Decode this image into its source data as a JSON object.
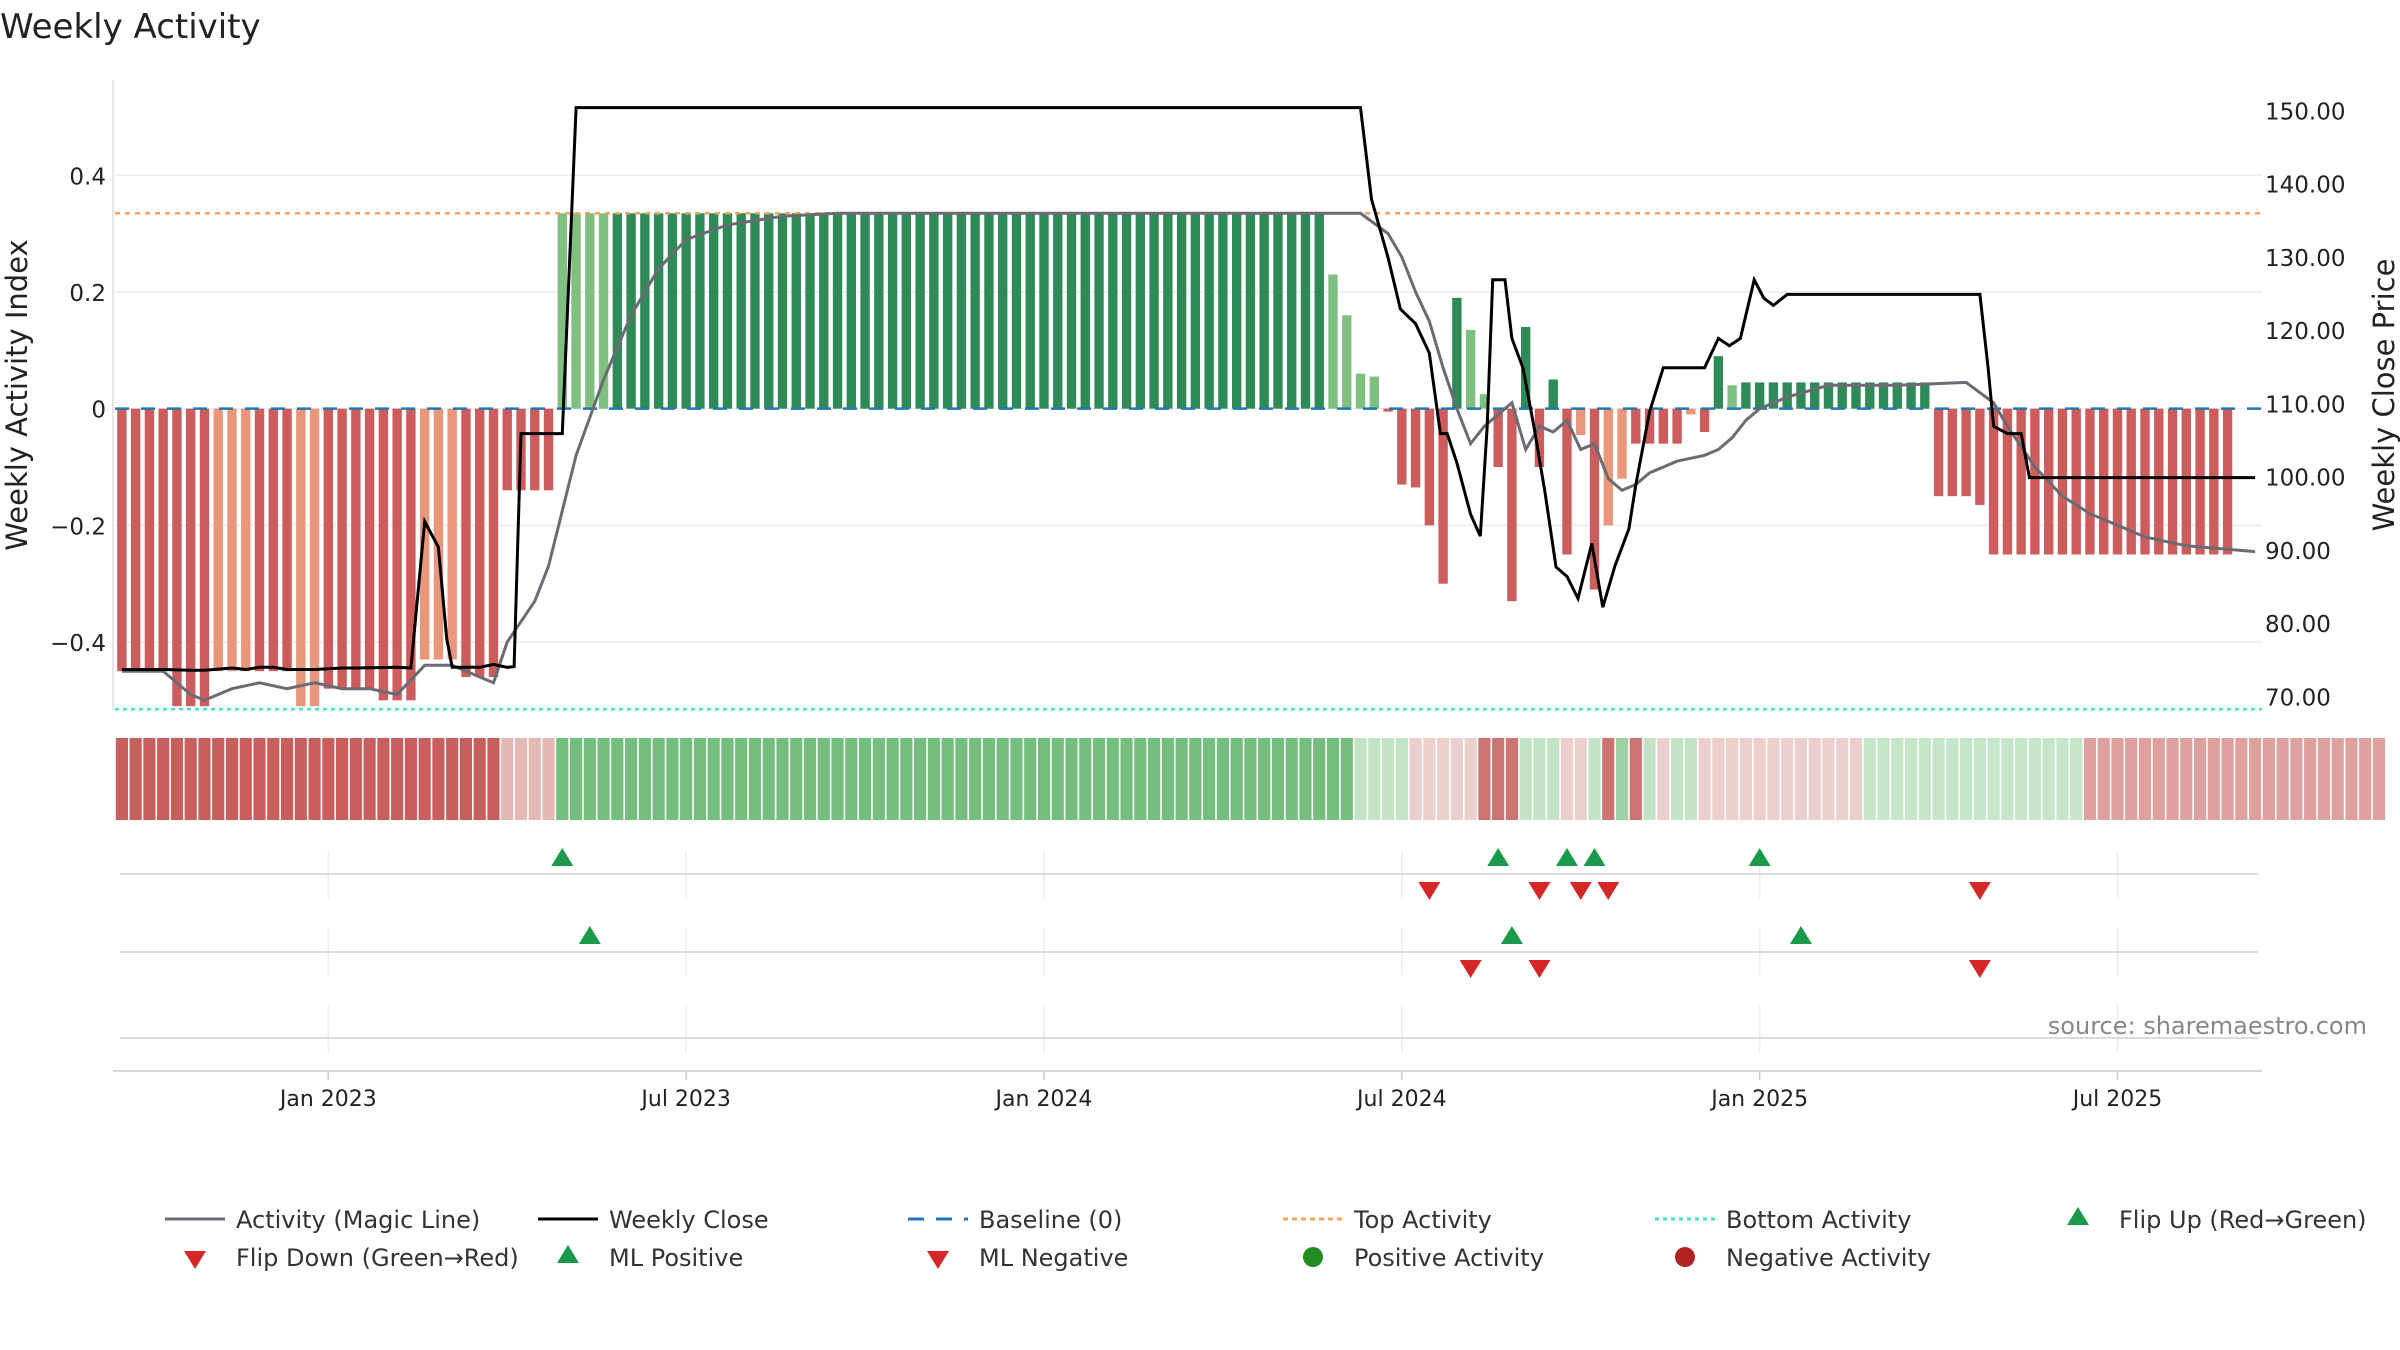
{
  "title": "Weekly Activity",
  "source": "source: sharemaestro.com",
  "chart_data": {
    "type": "bar",
    "title": "Weekly Activity",
    "ylabel": "Weekly Activity Index",
    "y2label": "Weekly Close Price",
    "ylim": [
      -0.52,
      0.56
    ],
    "y2lim": [
      68,
      154
    ],
    "yticks": [
      {
        "v": 0.4,
        "label": "0.4"
      },
      {
        "v": 0.2,
        "label": "0.2"
      },
      {
        "v": 0,
        "label": "0"
      },
      {
        "v": -0.2,
        "label": "−0.2"
      },
      {
        "v": -0.4,
        "label": "−0.4"
      }
    ],
    "y2ticks": [
      {
        "v": 150,
        "label": "150.00"
      },
      {
        "v": 140,
        "label": "140.00"
      },
      {
        "v": 130,
        "label": "130.00"
      },
      {
        "v": 120,
        "label": "120.00"
      },
      {
        "v": 110,
        "label": "110.00"
      },
      {
        "v": 100,
        "label": "100.00"
      },
      {
        "v": 90,
        "label": "90.00"
      },
      {
        "v": 80,
        "label": "80.00"
      },
      {
        "v": 70,
        "label": "70.00"
      }
    ],
    "xticks": [
      {
        "index": 15,
        "label": "Jan 2023"
      },
      {
        "index": 41,
        "label": "Jul 2023"
      },
      {
        "index": 67,
        "label": "Jan 2024"
      },
      {
        "index": 93,
        "label": "Jul 2024"
      },
      {
        "index": 119,
        "label": "Jan 2025"
      },
      {
        "index": 145,
        "label": "Jul 2025"
      }
    ],
    "top_activity": 0.335,
    "bottom_activity": -0.515,
    "baseline": 0,
    "colors": {
      "strong_green": "#2e8b57",
      "light_green": "#7fbf7f",
      "strong_red": "#cd5c5c",
      "light_red": "#e9967a",
      "magic_line": "#6b6b73",
      "close_line": "#000000",
      "baseline": "#1f77b4",
      "top_line": "#f4a460",
      "bottom_line": "#40e0d0",
      "marker_up": "#1a9a4a",
      "marker_down": "#d62728",
      "positive_dot": "#228b22",
      "negative_dot": "#b22222"
    },
    "bar_segments": [
      {
        "n": 4,
        "v": -0.45,
        "c": "sr"
      },
      {
        "n": 3,
        "v": -0.51,
        "c": "sr"
      },
      {
        "n": 3,
        "v": -0.45,
        "c": "lr"
      },
      {
        "n": 3,
        "v": -0.45,
        "c": "sr"
      },
      {
        "n": 2,
        "v": -0.51,
        "c": "lr"
      },
      {
        "n": 4,
        "v": -0.48,
        "c": "sr"
      },
      {
        "n": 3,
        "v": -0.5,
        "c": "sr"
      },
      {
        "n": 3,
        "v": -0.43,
        "c": "lr"
      },
      {
        "n": 3,
        "v": -0.46,
        "c": "sr"
      },
      {
        "n": 4,
        "v": -0.14,
        "c": "sr"
      },
      {
        "n": 4,
        "v": 0.335,
        "c": "lg"
      },
      {
        "n": 45,
        "v": 0.335,
        "c": "sg"
      },
      {
        "n": 7,
        "v": 0.335,
        "c": "sg"
      },
      {
        "v": 0.23,
        "c": "lg"
      },
      {
        "v": 0.16,
        "c": "lg"
      },
      {
        "v": 0.06,
        "c": "lg"
      },
      {
        "v": 0.055,
        "c": "lg"
      },
      {
        "v": -0.005,
        "c": "sr"
      },
      {
        "v": -0.13,
        "c": "sr"
      },
      {
        "v": -0.135,
        "c": "sr"
      },
      {
        "v": -0.2,
        "c": "sr"
      },
      {
        "v": -0.3,
        "c": "sr"
      },
      {
        "v": 0.19,
        "c": "sg"
      },
      {
        "v": 0.135,
        "c": "lg"
      },
      {
        "v": 0.025,
        "c": "lg"
      },
      {
        "v": -0.1,
        "c": "sr"
      },
      {
        "v": -0.33,
        "c": "sr"
      },
      {
        "v": 0.14,
        "c": "sg"
      },
      {
        "v": -0.1,
        "c": "sr"
      },
      {
        "v": 0.05,
        "c": "sg"
      },
      {
        "v": -0.25,
        "c": "sr"
      },
      {
        "v": -0.045,
        "c": "lr"
      },
      {
        "v": -0.31,
        "c": "sr"
      },
      {
        "v": -0.2,
        "c": "lr"
      },
      {
        "v": -0.12,
        "c": "lr"
      },
      {
        "v": -0.06,
        "c": "sr"
      },
      {
        "v": -0.06,
        "c": "sr"
      },
      {
        "v": -0.06,
        "c": "sr"
      },
      {
        "v": -0.06,
        "c": "sr"
      },
      {
        "v": -0.01,
        "c": "lr"
      },
      {
        "v": -0.04,
        "c": "sr"
      },
      {
        "v": 0.09,
        "c": "sg"
      },
      {
        "v": 0.04,
        "c": "lg"
      },
      {
        "v": 0.045,
        "c": "sg"
      },
      {
        "n": 13,
        "v": 0.045,
        "c": "sg"
      },
      {
        "n": 3,
        "v": -0.15,
        "c": "sr"
      },
      {
        "v": -0.165,
        "c": "sr"
      },
      {
        "n": 18,
        "v": -0.25,
        "c": "sr"
      }
    ],
    "magic_line": [
      [
        0,
        -0.45
      ],
      [
        3,
        -0.45
      ],
      [
        5,
        -0.49
      ],
      [
        6,
        -0.5
      ],
      [
        8,
        -0.48
      ],
      [
        10,
        -0.47
      ],
      [
        12,
        -0.48
      ],
      [
        14,
        -0.47
      ],
      [
        16,
        -0.48
      ],
      [
        18,
        -0.48
      ],
      [
        20,
        -0.49
      ],
      [
        22,
        -0.44
      ],
      [
        24,
        -0.44
      ],
      [
        26,
        -0.46
      ],
      [
        27,
        -0.47
      ],
      [
        28,
        -0.4
      ],
      [
        30,
        -0.33
      ],
      [
        31,
        -0.27
      ],
      [
        33,
        -0.08
      ],
      [
        35,
        0.05
      ],
      [
        37,
        0.16
      ],
      [
        39,
        0.24
      ],
      [
        41,
        0.29
      ],
      [
        44,
        0.315
      ],
      [
        48,
        0.33
      ],
      [
        52,
        0.335
      ],
      [
        90,
        0.335
      ],
      [
        92,
        0.3
      ],
      [
        93,
        0.26
      ],
      [
        94,
        0.2
      ],
      [
        95,
        0.15
      ],
      [
        96,
        0.07
      ],
      [
        97,
        0
      ],
      [
        98,
        -0.06
      ],
      [
        99,
        -0.03
      ],
      [
        100,
        -0.01
      ],
      [
        101,
        0.01
      ],
      [
        102,
        -0.07
      ],
      [
        103,
        -0.03
      ],
      [
        104,
        -0.04
      ],
      [
        105,
        -0.02
      ],
      [
        106,
        -0.07
      ],
      [
        107,
        -0.06
      ],
      [
        108,
        -0.12
      ],
      [
        109,
        -0.14
      ],
      [
        110,
        -0.13
      ],
      [
        111,
        -0.11
      ],
      [
        113,
        -0.09
      ],
      [
        115,
        -0.08
      ],
      [
        116,
        -0.07
      ],
      [
        117,
        -0.05
      ],
      [
        118,
        -0.02
      ],
      [
        119,
        0
      ],
      [
        121,
        0.02
      ],
      [
        124,
        0.04
      ],
      [
        129,
        0.04
      ],
      [
        134,
        0.045
      ],
      [
        136,
        0.01
      ],
      [
        137,
        -0.03
      ],
      [
        139,
        -0.1
      ],
      [
        141,
        -0.15
      ],
      [
        143,
        -0.18
      ],
      [
        145,
        -0.2
      ],
      [
        147,
        -0.22
      ],
      [
        150,
        -0.235
      ],
      [
        155,
        -0.245
      ]
    ],
    "weekly_close": [
      [
        0,
        73.8
      ],
      [
        3,
        73.8
      ],
      [
        5,
        73.7
      ],
      [
        6,
        73.7
      ],
      [
        8,
        74
      ],
      [
        9,
        73.8
      ],
      [
        10,
        74.1
      ],
      [
        11,
        74.1
      ],
      [
        12,
        73.8
      ],
      [
        14,
        73.8
      ],
      [
        16,
        74
      ],
      [
        17,
        74
      ],
      [
        20,
        74.1
      ],
      [
        21,
        74
      ],
      [
        22,
        94
      ],
      [
        23,
        90.5
      ],
      [
        23.6,
        78
      ],
      [
        24,
        74.1
      ],
      [
        26,
        74.1
      ],
      [
        27,
        74.5
      ],
      [
        28,
        74.1
      ],
      [
        28.5,
        74.2
      ],
      [
        29,
        106
      ],
      [
        31,
        106
      ],
      [
        32,
        106
      ],
      [
        33,
        150.5
      ],
      [
        90,
        150.5
      ],
      [
        90.8,
        138
      ],
      [
        92,
        130
      ],
      [
        92.9,
        123
      ],
      [
        94,
        121
      ],
      [
        95,
        117
      ],
      [
        95.8,
        106
      ],
      [
        96.3,
        106
      ],
      [
        97,
        102
      ],
      [
        98,
        95
      ],
      [
        98.7,
        92
      ],
      [
        99.2,
        107
      ],
      [
        99.6,
        127
      ],
      [
        100.5,
        127
      ],
      [
        101,
        119
      ],
      [
        101.8,
        115
      ],
      [
        102.6,
        107
      ],
      [
        103.4,
        98
      ],
      [
        104.2,
        87.8
      ],
      [
        105,
        86.5
      ],
      [
        105.8,
        83.5
      ],
      [
        106.8,
        91
      ],
      [
        107.6,
        82.3
      ],
      [
        108.5,
        88
      ],
      [
        109.5,
        93
      ],
      [
        110,
        99
      ],
      [
        111,
        109
      ],
      [
        112,
        115
      ],
      [
        114,
        115
      ],
      [
        115,
        115
      ],
      [
        116,
        119
      ],
      [
        116.8,
        118
      ],
      [
        117.6,
        119
      ],
      [
        118.6,
        127
      ],
      [
        119.3,
        124.5
      ],
      [
        120,
        123.5
      ],
      [
        121,
        125
      ],
      [
        127,
        125
      ],
      [
        131,
        125
      ],
      [
        135,
        125
      ],
      [
        135.6,
        115
      ],
      [
        136,
        107
      ],
      [
        137,
        106
      ],
      [
        138,
        106
      ],
      [
        138.6,
        100
      ],
      [
        155,
        100
      ]
    ],
    "heat_strip": [
      {
        "n": 28,
        "c": "#c95f5c"
      },
      {
        "n": 4,
        "c": "#e6b8b5"
      },
      {
        "n": 58,
        "c": "#74be7e"
      },
      {
        "n": 4,
        "c": "#c2e3c4"
      },
      {
        "n": 5,
        "c": "#ebcfcd"
      },
      {
        "n": 3,
        "c": "#cf7372"
      },
      {
        "n": 3,
        "c": "#c2e3c4"
      },
      {
        "n": 2,
        "c": "#ebcfcd"
      },
      {
        "n": 1,
        "c": "#c2e3c4"
      },
      {
        "n": 1,
        "c": "#cf7372"
      },
      {
        "n": 1,
        "c": "#9ed1a3"
      },
      {
        "n": 1,
        "c": "#cf7372"
      },
      {
        "n": 1,
        "c": "#c2e3c4"
      },
      {
        "n": 1,
        "c": "#ebcfcd"
      },
      {
        "n": 2,
        "c": "#c2e3c4"
      },
      {
        "n": 1,
        "c": "#ebcfcd"
      },
      {
        "n": 3,
        "c": "#ebcfcd"
      },
      {
        "n": 8,
        "c": "#ebcfcd"
      },
      {
        "n": 16,
        "c": "#c6e6c9"
      },
      {
        "n": 22,
        "c": "#dea19e"
      }
    ],
    "flip_row": {
      "up": [
        32,
        100,
        105,
        107,
        119
      ],
      "down": [
        95,
        103,
        106,
        108,
        135
      ]
    },
    "ml_row": {
      "up": [
        34,
        101,
        122
      ],
      "down": [
        98,
        103,
        135
      ]
    },
    "legend": [
      {
        "label": "Activity (Magic Line)",
        "sym": "line-gray"
      },
      {
        "label": "Weekly Close",
        "sym": "line-black"
      },
      {
        "label": "Baseline (0)",
        "sym": "dash-blue"
      },
      {
        "label": "Top Activity",
        "sym": "dot-orange"
      },
      {
        "label": "Bottom Activity",
        "sym": "dot-cyan"
      },
      {
        "label": "Flip Up (Red→Green)",
        "sym": "tri-up"
      },
      {
        "label": "Flip Down (Green→Red)",
        "sym": "tri-down"
      },
      {
        "label": "ML Positive",
        "sym": "tri-up"
      },
      {
        "label": "ML Negative",
        "sym": "tri-down"
      },
      {
        "label": "Positive Activity",
        "sym": "dot-green"
      },
      {
        "label": "Negative Activity",
        "sym": "dot-red"
      }
    ]
  }
}
